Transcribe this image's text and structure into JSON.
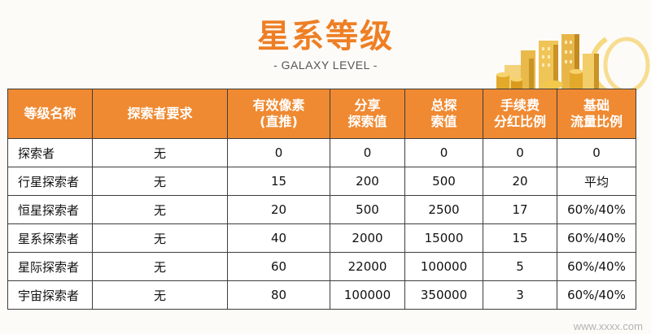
{
  "title": "星系等级",
  "subtitle": "- GALAXY LEVEL -",
  "table": {
    "headers": [
      {
        "line1": "等级名称",
        "line2": ""
      },
      {
        "line1": "探索者要求",
        "line2": ""
      },
      {
        "line1": "有效像素",
        "line2": "(直推)"
      },
      {
        "line1": "分享",
        "line2": "探索值"
      },
      {
        "line1": "总探",
        "line2": "索值"
      },
      {
        "line1": "手续费",
        "line2": "分红比例"
      },
      {
        "line1": "基础",
        "line2": "流量比例"
      }
    ],
    "rows": [
      {
        "name": "探索者",
        "requirement": "无",
        "direct": "0",
        "share": "0",
        "total": "0",
        "fee": "0",
        "flow": "0"
      },
      {
        "name": "行星探索者",
        "requirement": "无",
        "direct": "15",
        "share": "200",
        "total": "500",
        "fee": "20",
        "flow": "平均"
      },
      {
        "name": "恒星探索者",
        "requirement": "无",
        "direct": "20",
        "share": "500",
        "total": "2500",
        "fee": "17",
        "flow": "60%/40%"
      },
      {
        "name": "星系探索者",
        "requirement": "无",
        "direct": "40",
        "share": "2000",
        "total": "15000",
        "fee": "15",
        "flow": "60%/40%"
      },
      {
        "name": "星际探索者",
        "requirement": "无",
        "direct": "60",
        "share": "22000",
        "total": "100000",
        "fee": "5",
        "flow": "60%/40%"
      },
      {
        "name": "宇宙探索者",
        "requirement": "无",
        "direct": "80",
        "share": "100000",
        "total": "350000",
        "fee": "3",
        "flow": "60%/40%"
      }
    ]
  },
  "watermark": "www.xxxx.com",
  "colors": {
    "accent": "#ee7f24",
    "header_bg": "#ef8a32",
    "border": "#3d3d3d",
    "gold": "#e2a92a"
  }
}
